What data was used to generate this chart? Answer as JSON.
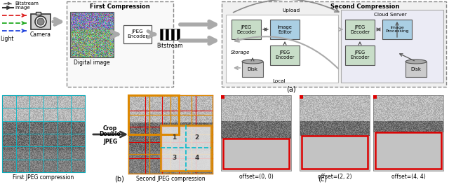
{
  "fig_width": 6.4,
  "fig_height": 2.7,
  "dpi": 100,
  "top_panel_label": "(a)",
  "bottom_panel_label": "(b)",
  "bottom_right_label": "(c)",
  "first_compression_title": "First Compression",
  "second_compression_title": "Second Compression",
  "upload_label": "Upload",
  "cloud_server_label": "Cloud Server",
  "local_label": "Local",
  "storage_label": "Storage",
  "legend_bitstream": "Bitstream",
  "legend_image": "Image",
  "light_label": "Light",
  "camera_label": "Camera",
  "digital_image_label": "Digital image",
  "bitstream_label": "Bitstream",
  "first_jpeg_label": "First JPEG compression",
  "second_jpeg_label": "Second JPEG compression",
  "crop_label": "Crop",
  "double_jpeg_label": "Double\nJPEG",
  "offset_labels": [
    "offset=(0, 0)",
    "offset=(2, 2)",
    "offset=(4, 4)"
  ],
  "box_green": "#c8ddc8",
  "box_blue": "#aacfe4",
  "arrow_gray": "#aaaaaa",
  "dash_border": "#888888",
  "red": "#dd0000",
  "orange": "#dd8800",
  "cyan": "#00bbcc",
  "img_gray": "#b0b0b0",
  "img_dark": "#606060"
}
